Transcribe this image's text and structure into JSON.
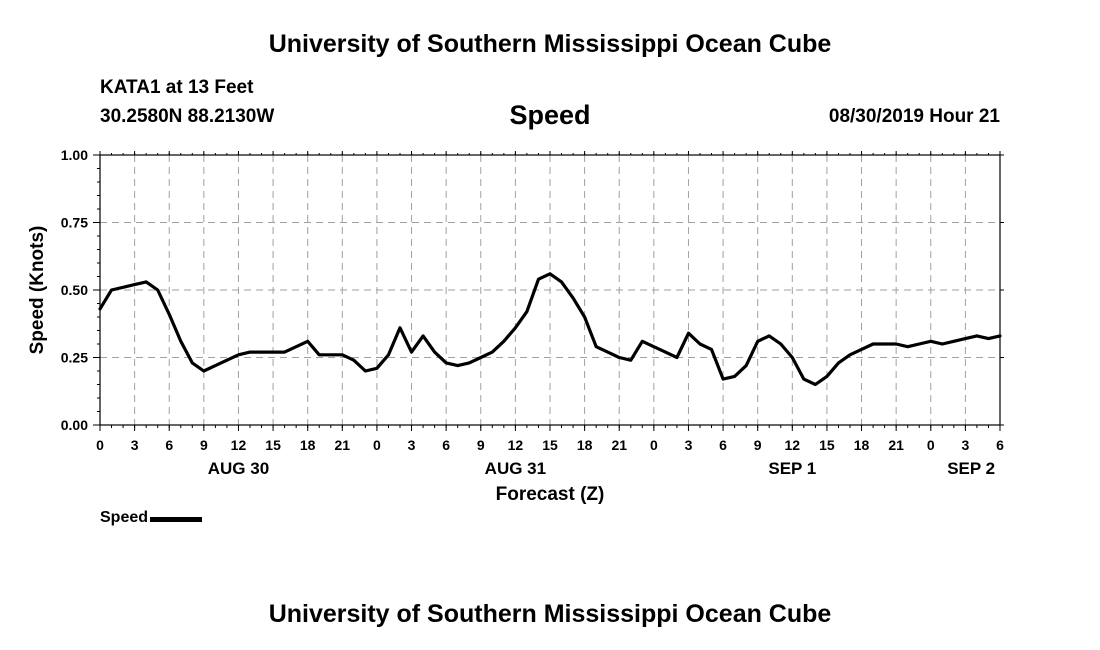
{
  "header": {
    "top_title": "University of Southern Mississippi Ocean Cube",
    "station": "KATA1 at 13 Feet",
    "coords": "30.2580N 88.2130W",
    "plot_title": "Speed",
    "timestamp": "08/30/2019 Hour 21"
  },
  "footer": {
    "bottom_title": "University of Southern Mississippi Ocean Cube"
  },
  "legend": {
    "label": "Speed"
  },
  "chart_data": {
    "type": "line",
    "title": "Speed",
    "xlabel": "Forecast (Z)",
    "ylabel": "Speed (Knots)",
    "xlim": [
      0,
      78
    ],
    "ylim": [
      0,
      1
    ],
    "yticks": [
      0,
      0.25,
      0.5,
      0.75,
      1.0
    ],
    "ytick_labels": [
      "0.00",
      "0.25",
      "0.50",
      "0.75",
      "1.00"
    ],
    "xticks": [
      0,
      3,
      6,
      9,
      12,
      15,
      18,
      21,
      24,
      27,
      30,
      33,
      36,
      39,
      42,
      45,
      48,
      51,
      54,
      57,
      60,
      63,
      66,
      69,
      72,
      75,
      78
    ],
    "xtick_labels": [
      "0",
      "3",
      "6",
      "9",
      "12",
      "15",
      "18",
      "21",
      "0",
      "3",
      "6",
      "9",
      "12",
      "15",
      "18",
      "21",
      "0",
      "3",
      "6",
      "9",
      "12",
      "15",
      "18",
      "21",
      "0",
      "3",
      "6"
    ],
    "date_labels": [
      {
        "x": 12,
        "label": "AUG 30"
      },
      {
        "x": 36,
        "label": "AUG 31"
      },
      {
        "x": 60,
        "label": "SEP 1"
      },
      {
        "x": 75.5,
        "label": "SEP 2"
      }
    ],
    "grid": true,
    "legend_position": "bottom-left",
    "series": [
      {
        "name": "Speed",
        "x": [
          0,
          1,
          2,
          3,
          4,
          5,
          6,
          7,
          8,
          9,
          10,
          11,
          12,
          13,
          14,
          15,
          16,
          17,
          18,
          19,
          20,
          21,
          22,
          23,
          24,
          25,
          26,
          27,
          28,
          29,
          30,
          31,
          32,
          33,
          34,
          35,
          36,
          37,
          38,
          39,
          40,
          41,
          42,
          43,
          44,
          45,
          46,
          47,
          48,
          49,
          50,
          51,
          52,
          53,
          54,
          55,
          56,
          57,
          58,
          59,
          60,
          61,
          62,
          63,
          64,
          65,
          66,
          67,
          68,
          69,
          70,
          71,
          72,
          73,
          74,
          75,
          76,
          77,
          78
        ],
        "values": [
          0.43,
          0.5,
          0.51,
          0.52,
          0.53,
          0.5,
          0.41,
          0.31,
          0.23,
          0.2,
          0.22,
          0.24,
          0.26,
          0.27,
          0.27,
          0.27,
          0.27,
          0.29,
          0.31,
          0.26,
          0.26,
          0.26,
          0.24,
          0.2,
          0.21,
          0.26,
          0.36,
          0.27,
          0.33,
          0.27,
          0.23,
          0.22,
          0.23,
          0.25,
          0.27,
          0.31,
          0.36,
          0.42,
          0.54,
          0.56,
          0.53,
          0.47,
          0.4,
          0.29,
          0.27,
          0.25,
          0.24,
          0.31,
          0.29,
          0.27,
          0.25,
          0.34,
          0.3,
          0.28,
          0.17,
          0.18,
          0.22,
          0.31,
          0.33,
          0.3,
          0.25,
          0.17,
          0.15,
          0.18,
          0.23,
          0.26,
          0.28,
          0.3,
          0.3,
          0.3,
          0.29,
          0.3,
          0.31,
          0.3,
          0.31,
          0.32,
          0.33,
          0.32,
          0.33
        ]
      }
    ]
  }
}
